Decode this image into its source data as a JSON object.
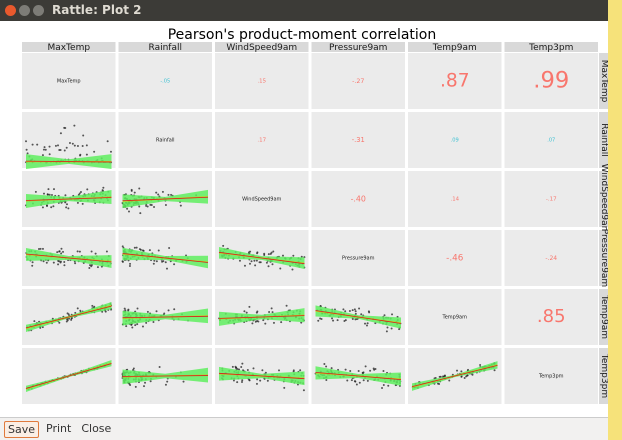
{
  "window": {
    "title": "Rattle: Plot 2"
  },
  "plot": {
    "title": "Pearson's product-moment correlation",
    "variables": [
      "MaxTemp",
      "Rainfall",
      "WindSpeed9am",
      "Pressure9am",
      "Temp9am",
      "Temp3pm"
    ],
    "correlations": [
      [
        "-.05",
        ".15",
        "-.27",
        ".87",
        ".99"
      ],
      [
        ".17",
        "-.31",
        ".09",
        ".07"
      ],
      [
        "-.40",
        ".14",
        "-.17"
      ],
      [
        "-.46",
        "-.24"
      ],
      [
        ".85"
      ]
    ]
  },
  "buttons": [
    "Save",
    "Print",
    "Close"
  ]
}
